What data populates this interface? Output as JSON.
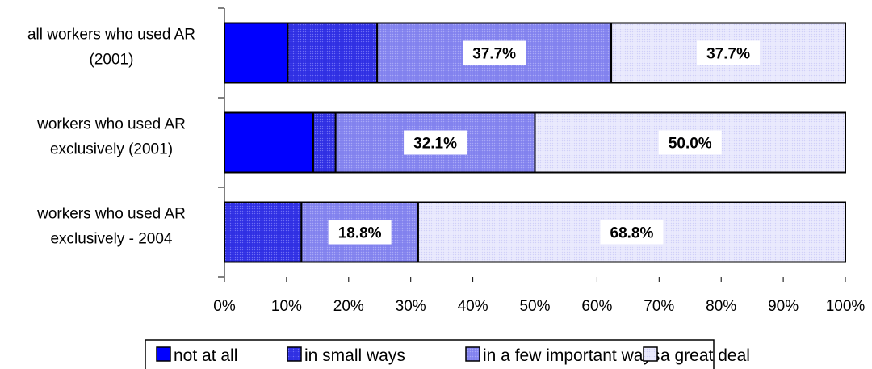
{
  "chart_data": {
    "type": "bar",
    "orientation": "horizontal",
    "stacked": "percent",
    "categories": [
      [
        "all workers who used AR",
        "(2001)"
      ],
      [
        "workers who used AR",
        "exclusively (2001)"
      ],
      [
        "workers who used AR",
        "exclusively - 2004"
      ]
    ],
    "series": [
      {
        "name": "not at all",
        "values": [
          10.2,
          14.3,
          0
        ],
        "color": "#0000FF"
      },
      {
        "name": "in small ways",
        "values": [
          14.4,
          3.6,
          12.4
        ],
        "color": "#3A3AE6"
      },
      {
        "name": "in a few important ways",
        "values": [
          37.7,
          32.1,
          18.8
        ],
        "color": "#8C8CF0"
      },
      {
        "name": "a great deal",
        "values": [
          37.7,
          50.0,
          68.8
        ],
        "color": "#E4E4FC"
      }
    ],
    "data_labels": [
      [
        null,
        null,
        "37.7%",
        "37.7%"
      ],
      [
        null,
        null,
        "32.1%",
        "50.0%"
      ],
      [
        null,
        null,
        "18.8%",
        "68.8%"
      ]
    ],
    "x_ticks": [
      "0%",
      "10%",
      "20%",
      "30%",
      "40%",
      "50%",
      "60%",
      "70%",
      "80%",
      "90%",
      "100%"
    ],
    "xlim": [
      0,
      100
    ],
    "grid": false,
    "legend_position": "bottom",
    "title": "",
    "xlabel": "",
    "ylabel": ""
  }
}
